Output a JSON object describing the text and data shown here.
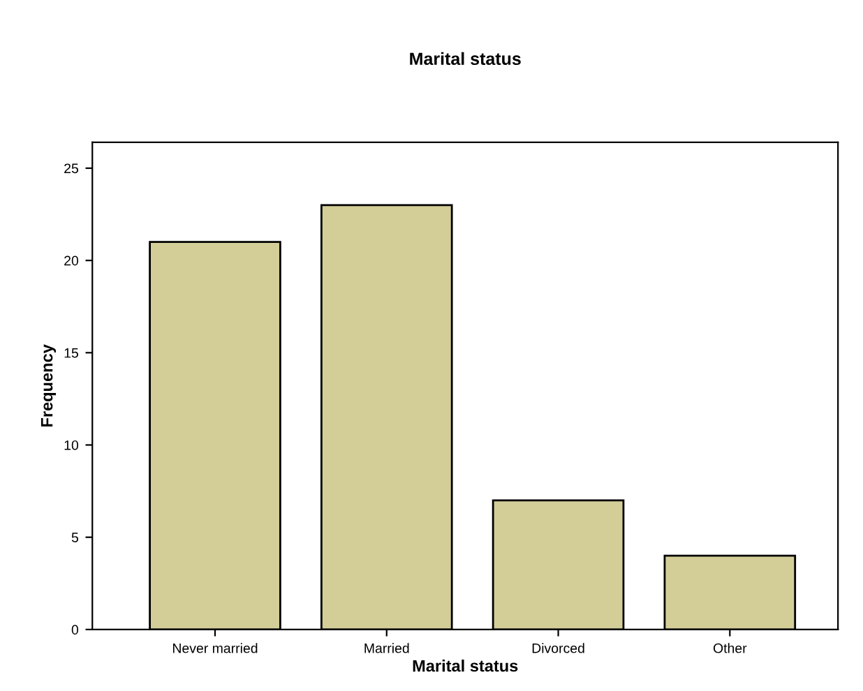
{
  "chart_data": {
    "type": "bar",
    "title": "Marital status",
    "xlabel": "Marital status",
    "ylabel": "Frequency",
    "categories": [
      "Never married",
      "Married",
      "Divorced",
      "Other"
    ],
    "values": [
      21,
      23,
      7,
      4
    ],
    "color": "#d3cd98",
    "ylim": [
      0,
      26.4
    ],
    "yticks": [
      0,
      5,
      10,
      15,
      20,
      25
    ],
    "grid": false,
    "legend": false
  }
}
